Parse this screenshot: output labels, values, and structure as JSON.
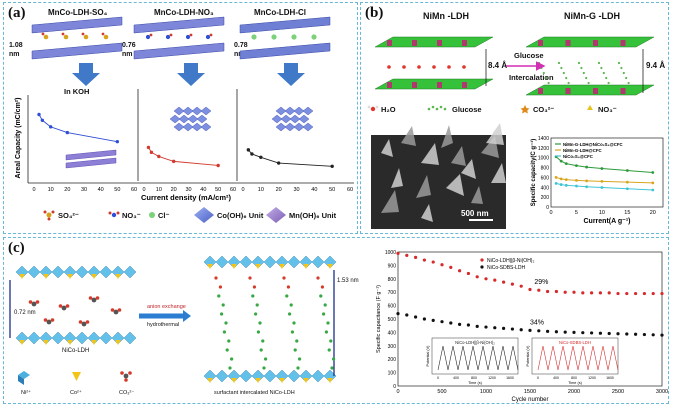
{
  "panel_a": {
    "label": "(a)",
    "structures": [
      "MnCo-LDH-SO₄",
      "MnCo-LDH-NO₃",
      "MnCo-LDH-Cl"
    ],
    "spacings": [
      "1.08 nm",
      "0.76 nm",
      "0.78 nm"
    ],
    "electrolyte": "In KOH",
    "legend": {
      "so4": "SO₄²⁻",
      "no3": "NO₃⁻",
      "cl": "Cl⁻",
      "co": "Co(OH)₆ Unit",
      "mn": "Mn(OH)₆ Unit"
    },
    "colors": {
      "so4": "#2f4fd6",
      "no3": "#d13b2e",
      "cl": "#222222"
    }
  },
  "panel_b": {
    "label": "(b)",
    "title_left": "NiMn -LDH",
    "title_right": "NiMn-G -LDH",
    "spacing_left": "8.4 Å",
    "spacing_right": "9.4 Å",
    "arrow_label_1": "Glucose",
    "arrow_label_2": "Intercalation",
    "legend": {
      "h2o": "H₂O",
      "glucose": "Glucose",
      "co3": "CO₃²⁻",
      "no3": "NO₃⁻"
    },
    "scale_bar": "500 nm",
    "colors": {
      "g": "#2e9a3a",
      "gc": "#d9a51f",
      "n": "#3fc4d6"
    }
  },
  "panel_c": {
    "label": "(c)",
    "annot": {
      "d_left": "0.72 nm",
      "d_right": "1.53 nm",
      "ldh": "NiCo-LDH",
      "ion1": "anion exchange",
      "ion2": "hydrothermal",
      "ni": "Ni²⁺",
      "co": "Co²⁺",
      "co3": "CO₃²⁻",
      "surf": "surfactant intercalated NiCo-LDH"
    },
    "pct_top": "29%",
    "pct_bottom": "34%",
    "inset1": {
      "title": "NiCo-LDH||β-Ni(OH)₂",
      "xlabel": "Time (s)",
      "ylabel": "Potential (V)",
      "ticks": [
        "0",
        "400",
        "800",
        "1200",
        "1600"
      ]
    },
    "inset2": {
      "title": "NiCo-SDBS-LDH",
      "xlabel": "Time (s)",
      "ylabel": "Potential (V)",
      "ticks": [
        "0",
        "400",
        "800",
        "1200",
        "1600"
      ]
    },
    "colors": {
      "s1": "#d62a2a",
      "s2": "#111111"
    }
  },
  "chart_data": [
    {
      "type": "line",
      "title": "",
      "xlabel": "Current density (mA/cm²)",
      "ylabel": "Areal Capacity (mC/cm²)",
      "xlim": [
        0,
        60
      ],
      "xticks": [
        "0",
        "10",
        "20",
        "30",
        "40",
        "50",
        "60"
      ],
      "series": [
        {
          "name": "MnCo-LDH-SO₄",
          "color": "#2f4fd6",
          "x": [
            3,
            5,
            10,
            20,
            50
          ],
          "y": [
            530,
            495,
            455,
            420,
            365
          ]
        },
        {
          "name": "MnCo-LDH-NO₃",
          "color": "#d13b2e",
          "x": [
            3,
            5,
            10,
            20,
            50
          ],
          "y": [
            330,
            300,
            275,
            245,
            220
          ]
        },
        {
          "name": "MnCo-LDH-Cl",
          "color": "#222222",
          "x": [
            3,
            5,
            10,
            20,
            50
          ],
          "y": [
            315,
            290,
            270,
            235,
            215
          ]
        }
      ]
    },
    {
      "type": "line",
      "title": "",
      "xlabel": "Current(A g⁻¹)",
      "ylabel": "Specific capacity(C g⁻¹)",
      "xlim": [
        0,
        22
      ],
      "ylim": [
        0,
        1400
      ],
      "xticks": [
        "0",
        "5",
        "10",
        "15",
        "20"
      ],
      "yticks": [
        "0",
        "200",
        "400",
        "600",
        "800",
        "1000",
        "1200",
        "1400"
      ],
      "series": [
        {
          "name": "NiMn-G-LDH@NiCo₂S₄@CFC",
          "color": "#2e9a3a",
          "x": [
            1,
            2,
            3,
            5,
            7,
            10,
            15,
            20
          ],
          "y": [
            1020,
            930,
            880,
            840,
            810,
            780,
            740,
            700
          ]
        },
        {
          "name": "NiMn-G-LDH@CFC",
          "color": "#d9a51f",
          "x": [
            1,
            2,
            3,
            5,
            7,
            10,
            15,
            20
          ],
          "y": [
            600,
            570,
            555,
            540,
            530,
            520,
            505,
            490
          ]
        },
        {
          "name": "NiCo₂S₄@CFC",
          "color": "#3fc4d6",
          "x": [
            1,
            2,
            3,
            5,
            7,
            10,
            15,
            20
          ],
          "y": [
            480,
            455,
            440,
            425,
            410,
            395,
            370,
            345
          ]
        }
      ]
    },
    {
      "type": "scatter",
      "title": "",
      "xlabel": "Cycle number",
      "ylabel": "Specific capacitance (F g⁻¹)",
      "xlim": [
        0,
        3000
      ],
      "ylim": [
        0,
        1000
      ],
      "xticks": [
        "0",
        "500",
        "1000",
        "1500",
        "2000",
        "2500",
        "3000"
      ],
      "yticks": [
        "0",
        "100",
        "200",
        "300",
        "400",
        "500",
        "600",
        "700",
        "800",
        "900",
        "1000"
      ],
      "series": [
        {
          "name": "NiCo-LDH||β-Ni(OH)₂",
          "color": "#d62a2a",
          "x": [
            0,
            100,
            200,
            300,
            400,
            500,
            600,
            700,
            800,
            900,
            1000,
            1100,
            1200,
            1300,
            1400,
            1500,
            1600,
            1700,
            1800,
            1900,
            2000,
            2100,
            2200,
            2300,
            2400,
            2500,
            2600,
            2700,
            2800,
            2900,
            3000
          ],
          "y": [
            990,
            975,
            960,
            940,
            925,
            905,
            885,
            860,
            840,
            815,
            800,
            790,
            775,
            760,
            745,
            720,
            715,
            705,
            705,
            700,
            700,
            695,
            695,
            695,
            695,
            690,
            690,
            690,
            690,
            690,
            690
          ]
        },
        {
          "name": "NiCo-SDBS-LDH",
          "color": "#111111",
          "x": [
            0,
            100,
            200,
            300,
            400,
            500,
            600,
            700,
            800,
            900,
            1000,
            1100,
            1200,
            1300,
            1400,
            1500,
            1600,
            1700,
            1800,
            1900,
            2000,
            2100,
            2200,
            2300,
            2400,
            2500,
            2600,
            2700,
            2800,
            2900,
            3000
          ],
          "y": [
            540,
            530,
            515,
            500,
            490,
            480,
            470,
            460,
            455,
            445,
            440,
            435,
            430,
            425,
            420,
            415,
            412,
            408,
            405,
            402,
            400,
            398,
            396,
            394,
            392,
            390,
            388,
            386,
            384,
            382,
            380
          ]
        }
      ]
    }
  ]
}
